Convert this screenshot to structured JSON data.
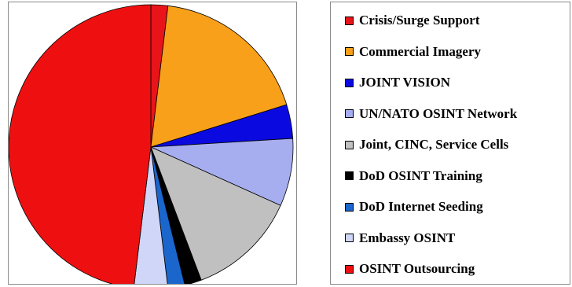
{
  "chart_data": {
    "type": "pie",
    "title": "",
    "legend_position": "right",
    "start": "top, clockwise",
    "slices": [
      {
        "name": "Crisis/Surge Support",
        "value": 2,
        "color": "#e8141a"
      },
      {
        "name": "Commercial Imagery",
        "value": 19,
        "color": "#f9a01a"
      },
      {
        "name": "JOINT VISION",
        "value": 4,
        "color": "#0a0ae0"
      },
      {
        "name": "UN/NATO OSINT Network",
        "value": 8,
        "color": "#a6aef0"
      },
      {
        "name": "Joint, CINC, Service Cells",
        "value": 13,
        "color": "#c0c0c0"
      },
      {
        "name": "DoD OSINT Training",
        "value": 2,
        "color": "#000000"
      },
      {
        "name": "DoD Internet Seeding",
        "value": 2,
        "color": "#1a66cc"
      },
      {
        "name": "Embassy OSINT",
        "value": 4,
        "color": "#d0d6f8"
      },
      {
        "name": "OSINT Outsourcing",
        "value": 50,
        "color": "#ee1010"
      }
    ]
  }
}
